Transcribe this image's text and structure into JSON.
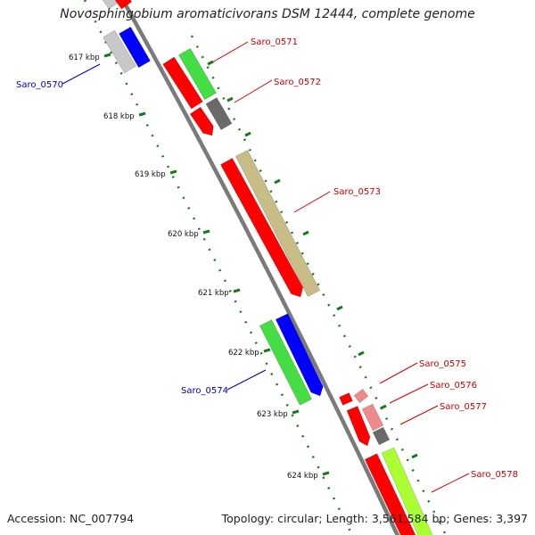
{
  "title": "Novosphingobium aromaticivorans DSM 12444, complete genome",
  "footer": {
    "accession": "Accession: NC_007794",
    "topology": "Topology: circular; Length: 3,561,584 bp; Genes: 3,397"
  },
  "colors": {
    "backbone": "#7a7a7a",
    "forward_label": "#cc0000",
    "reverse_label": "#0000bb",
    "tick": "#1a7a1a",
    "red": "#ff0000",
    "green": "#44dd44",
    "blue": "#0000ff",
    "gray": "#6a6a6a",
    "khaki": "#c8bd86",
    "pink": "#f08a8a",
    "lime": "#aaff33",
    "lightgray": "#c8c8c8"
  },
  "kbp_labels": [
    "617 kbp",
    "618 kbp",
    "619 kbp",
    "620 kbp",
    "621 kbp",
    "622 kbp",
    "623 kbp",
    "624 kbp"
  ],
  "genes": [
    {
      "name": "Saro_0570",
      "strand": "reverse",
      "label": "Saro_0570"
    },
    {
      "name": "Saro_0571",
      "strand": "forward",
      "label": "Saro_0571"
    },
    {
      "name": "Saro_0572",
      "strand": "forward",
      "label": "Saro_0572"
    },
    {
      "name": "Saro_0573",
      "strand": "forward",
      "label": "Saro_0573"
    },
    {
      "name": "Saro_0574",
      "strand": "reverse",
      "label": "Saro_0574"
    },
    {
      "name": "Saro_0575",
      "strand": "forward",
      "label": "Saro_0575"
    },
    {
      "name": "Saro_0576",
      "strand": "forward",
      "label": "Saro_0576"
    },
    {
      "name": "Saro_0577",
      "strand": "forward",
      "label": "Saro_0577"
    },
    {
      "name": "Saro_0578",
      "strand": "forward",
      "label": "Saro_0578"
    }
  ]
}
